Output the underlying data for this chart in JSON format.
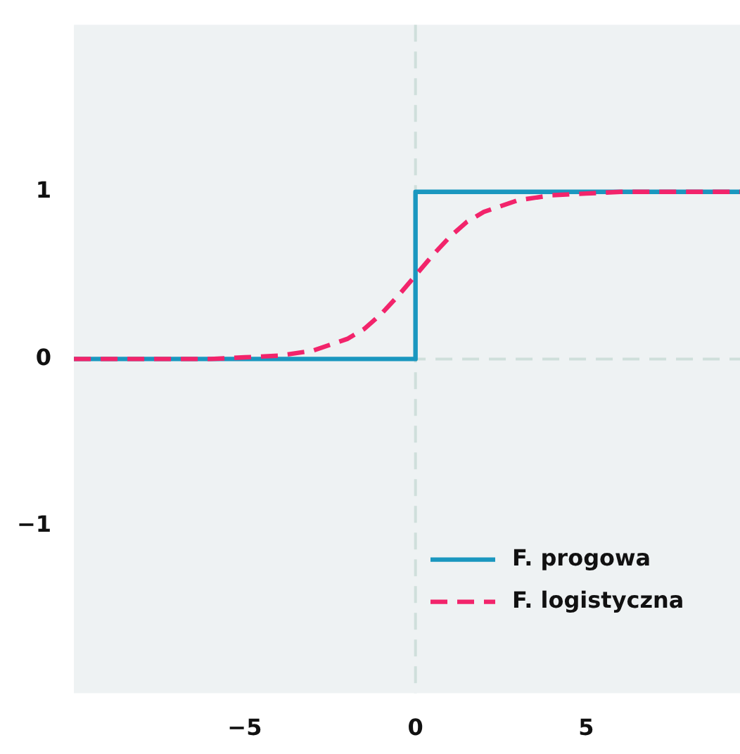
{
  "chart_data": {
    "type": "line",
    "xlim": [
      -10,
      9.5
    ],
    "ylim": [
      -2,
      2
    ],
    "xticks": [
      {
        "value": -5,
        "label": "−5"
      },
      0,
      5
    ],
    "yticks": [
      {
        "value": -1,
        "label": "−1"
      },
      0,
      1
    ],
    "grid": false,
    "legend": "bottom right",
    "marker": "none",
    "ref_lines": [
      {
        "axis": "x",
        "value": 0,
        "color": "#cfdfdb",
        "line_style": "dashed"
      },
      {
        "axis": "y",
        "value": 0,
        "color": "#cfdfdb",
        "line_style": "dashed"
      }
    ],
    "series": [
      {
        "name": "F. progowa",
        "color": "#1a97bf",
        "line_style": "solid",
        "x": [
          -10,
          0,
          0,
          9.5
        ],
        "values": [
          0,
          0,
          1,
          1
        ]
      },
      {
        "name": "F. logistyczna",
        "color": "#f2246b",
        "line_style": "dashed",
        "x": [
          -10,
          -8,
          -6,
          -5,
          -4,
          -3,
          -2,
          -1.5,
          -1,
          -0.5,
          0,
          0.5,
          1,
          1.5,
          2,
          3,
          4,
          5,
          6,
          8,
          9.5
        ],
        "values": [
          0,
          0,
          0,
          0.01,
          0.02,
          0.05,
          0.12,
          0.18,
          0.27,
          0.38,
          0.5,
          0.62,
          0.73,
          0.82,
          0.88,
          0.95,
          0.98,
          0.99,
          1,
          1,
          1
        ]
      }
    ]
  }
}
